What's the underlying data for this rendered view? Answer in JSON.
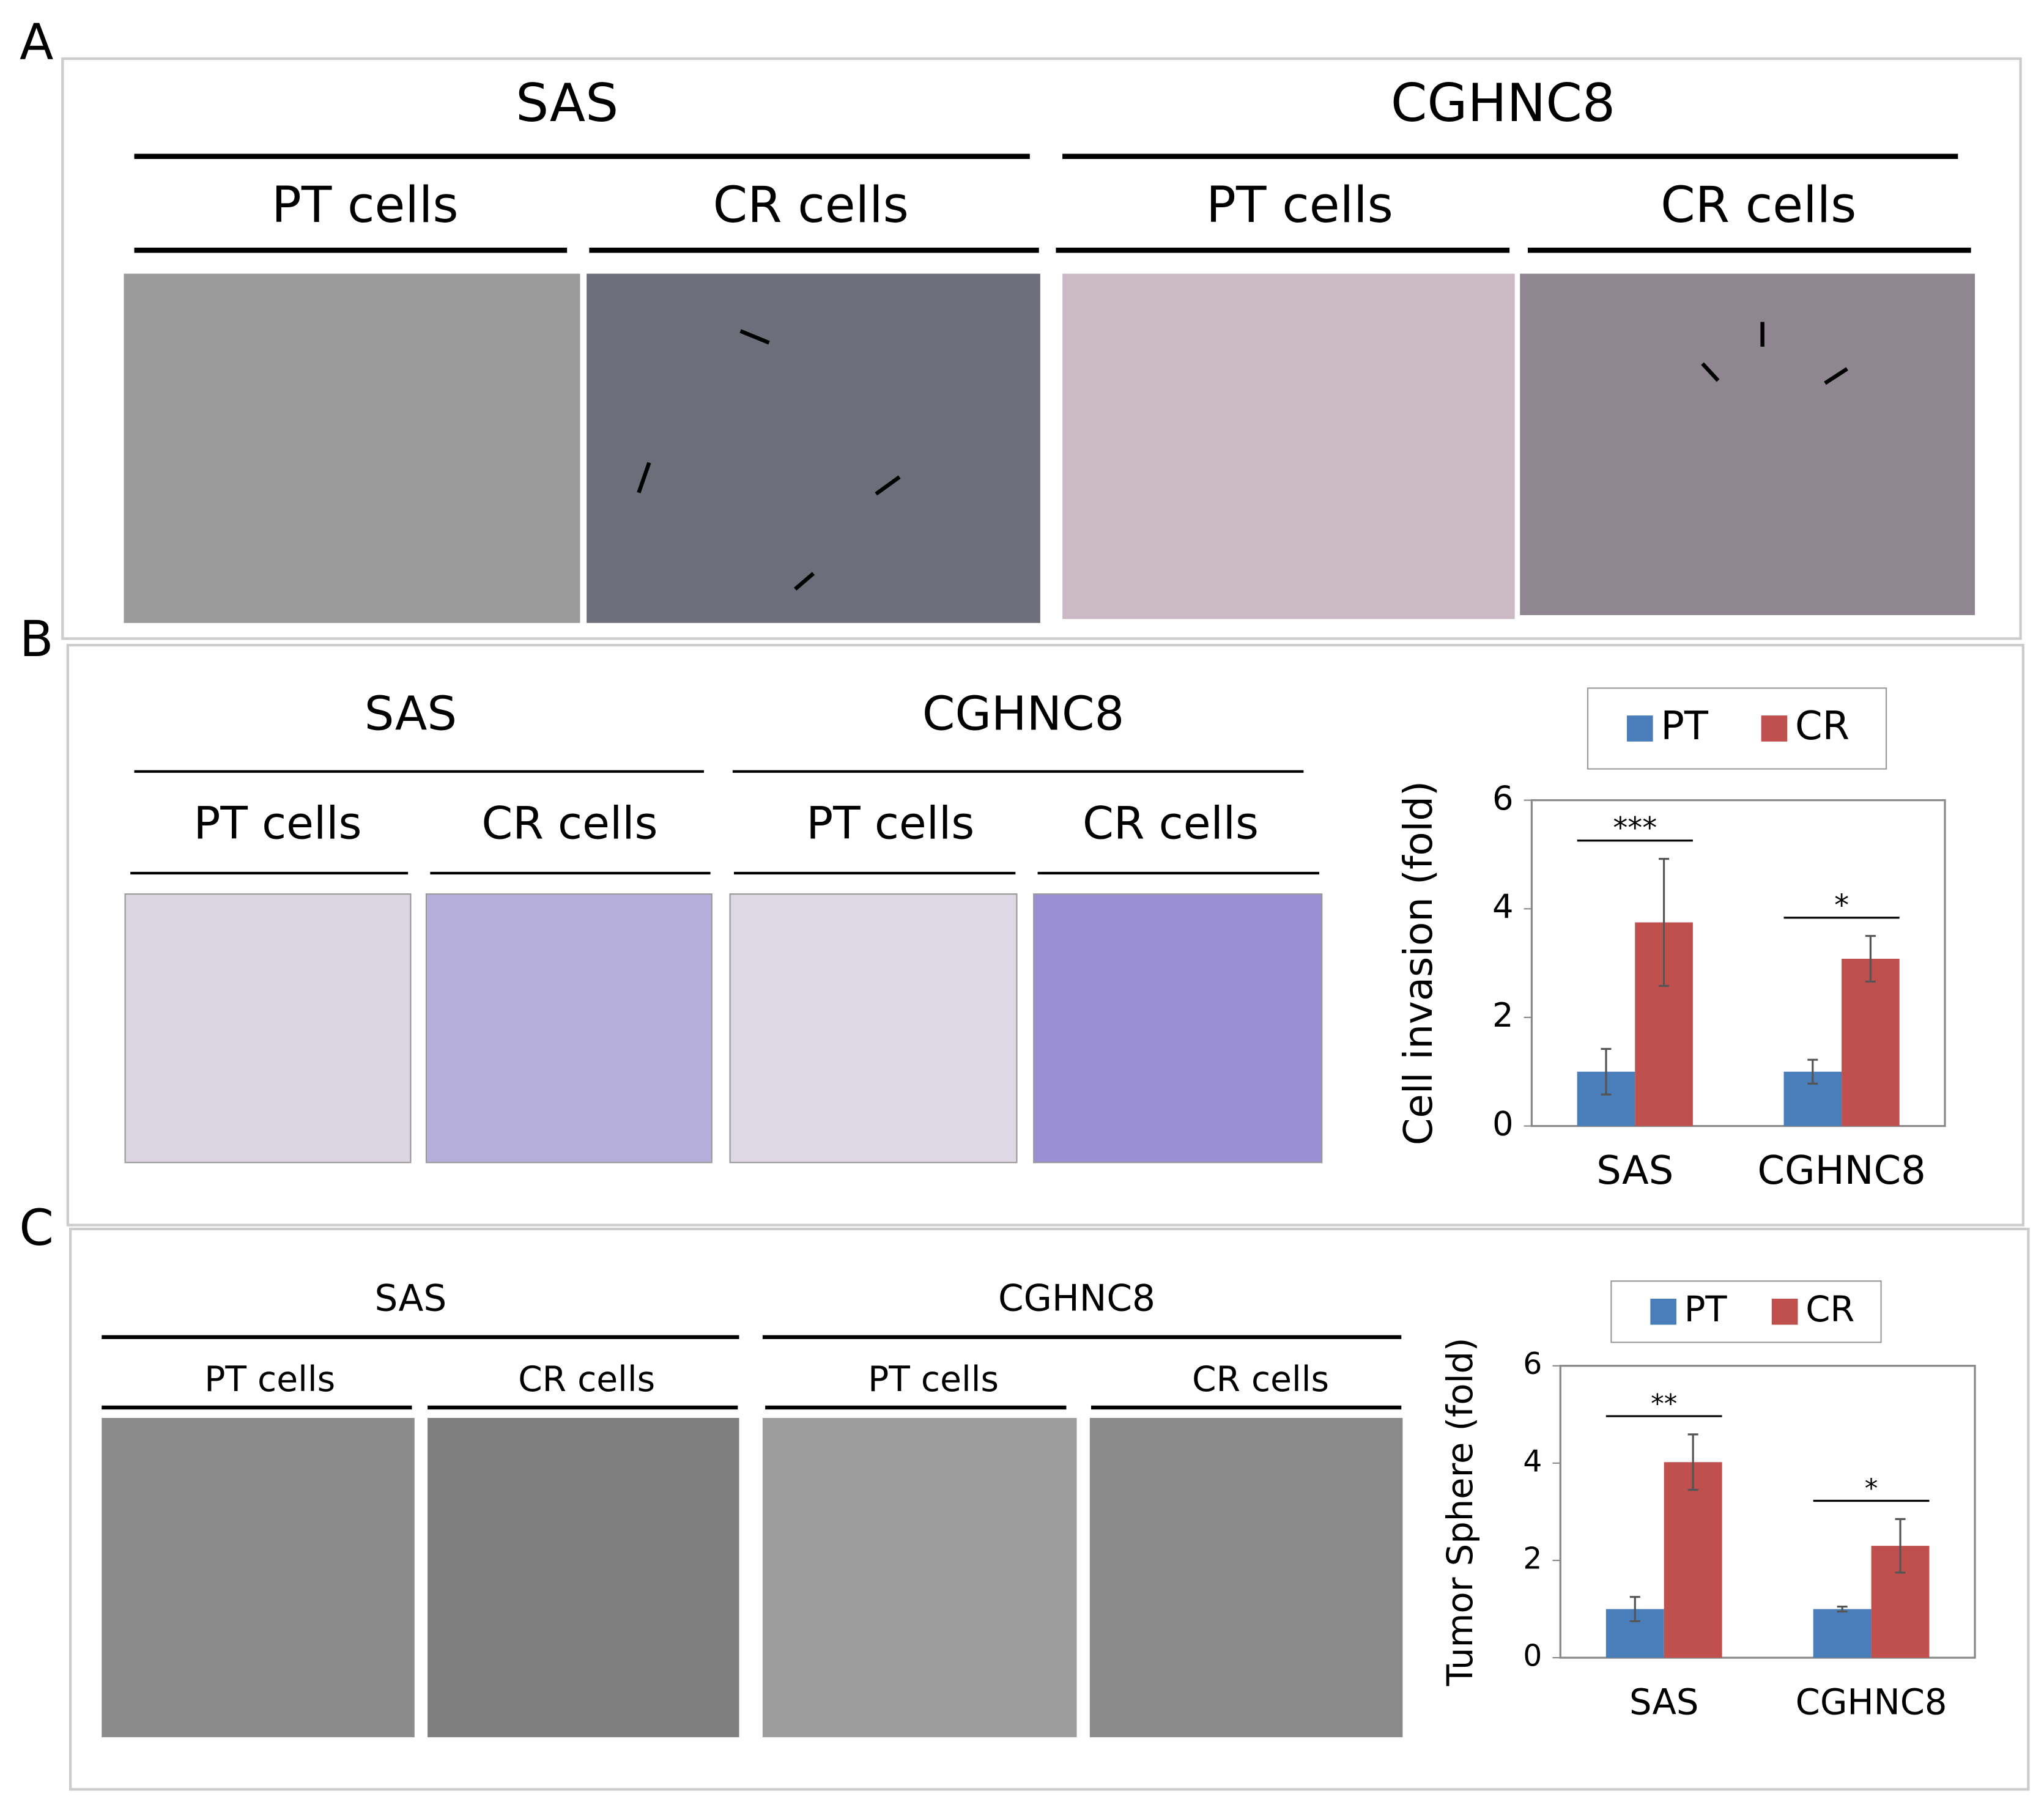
{
  "panels": [
    {
      "label": "A",
      "groups": [
        {
          "name": "SAS",
          "cells": [
            "PT cells",
            "CR cells"
          ]
        },
        {
          "name": "CGHNC8",
          "cells": [
            "PT cells",
            "CR cells"
          ]
        }
      ]
    },
    {
      "label": "B",
      "groups": [
        {
          "name": "SAS",
          "cells": [
            "PT cells",
            "CR cells"
          ]
        },
        {
          "name": "CGHNC8",
          "cells": [
            "PT cells",
            "CR cells"
          ]
        }
      ]
    },
    {
      "label": "C",
      "groups": [
        {
          "name": "SAS",
          "cells": [
            "PT cells",
            "CR cells"
          ]
        },
        {
          "name": "CGHNC8",
          "cells": [
            "PT cells",
            "CR cells"
          ]
        }
      ]
    }
  ],
  "chart_data": [
    {
      "type": "bar",
      "y_label": "Cell invasion (fold)",
      "categories": [
        "SAS",
        "CGHNC8"
      ],
      "series": [
        {
          "name": "PT",
          "color": "#4a7ebb",
          "values": [
            1,
            1
          ],
          "errors": [
            0.42,
            0.22
          ]
        },
        {
          "name": "CR",
          "color": "#c0504d",
          "values": [
            3.75,
            3.08
          ],
          "errors": [
            1.17,
            0.42
          ]
        }
      ],
      "annotations": [
        "***",
        "*"
      ],
      "ylim": [
        0,
        6
      ],
      "yticks": [
        0,
        2,
        4,
        6
      ],
      "legend": "top"
    },
    {
      "type": "bar",
      "y_label": "Tumor Sphere (fold)",
      "categories": [
        "SAS",
        "CGHNC8"
      ],
      "series": [
        {
          "name": "PT",
          "color": "#4a7ebb",
          "values": [
            1,
            1
          ],
          "errors": [
            0.25,
            0.05
          ]
        },
        {
          "name": "CR",
          "color": "#c0504d",
          "values": [
            4.02,
            2.3
          ],
          "errors": [
            0.57,
            0.55
          ]
        }
      ],
      "annotations": [
        "**",
        "*"
      ],
      "ylim": [
        0,
        6
      ],
      "yticks": [
        0,
        2,
        4,
        6
      ],
      "legend": "top"
    }
  ]
}
